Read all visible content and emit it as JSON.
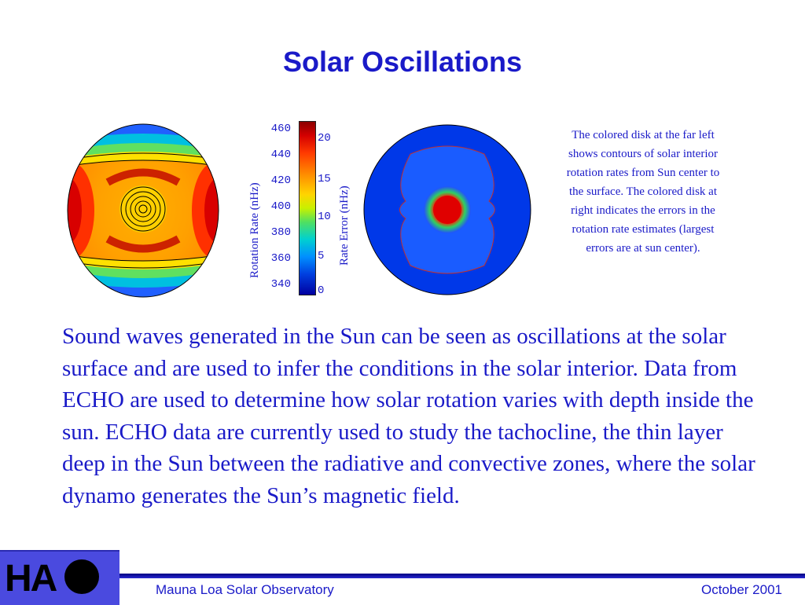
{
  "slide": {
    "title": "Solar Oscillations",
    "caption": "The colored disk at the far left shows contours of solar interior rotation rates from Sun center to the surface. The colored disk at right indicates the errors in the rotation rate estimates (largest errors are at sun center).",
    "body": "Sound waves generated in the Sun can be seen as oscillations at the solar surface and are used to infer the conditions in the solar interior. Data from ECHO are used to determine how solar rotation varies with depth inside the sun. ECHO data are currently used to study the tachocline, the thin layer deep in the Sun between the radiative and convective zones, where the solar dynamo generates the Sun’s magnetic field."
  },
  "figure": {
    "left_axis_title": "Rotation Rate (nHz)",
    "right_axis_title": "Rate Error (nHz)",
    "left_ticks": [
      "460",
      "440",
      "420",
      "400",
      "380",
      "360",
      "340"
    ],
    "right_ticks": [
      "20",
      "15",
      "10",
      "5",
      "0"
    ]
  },
  "footer": {
    "logo_text": "HA",
    "left": "Mauna Loa Solar Observatory",
    "right": "October 2001"
  },
  "colors": {
    "text_blue": "#1a1ac8",
    "logo_bg": "#4a4adf"
  }
}
